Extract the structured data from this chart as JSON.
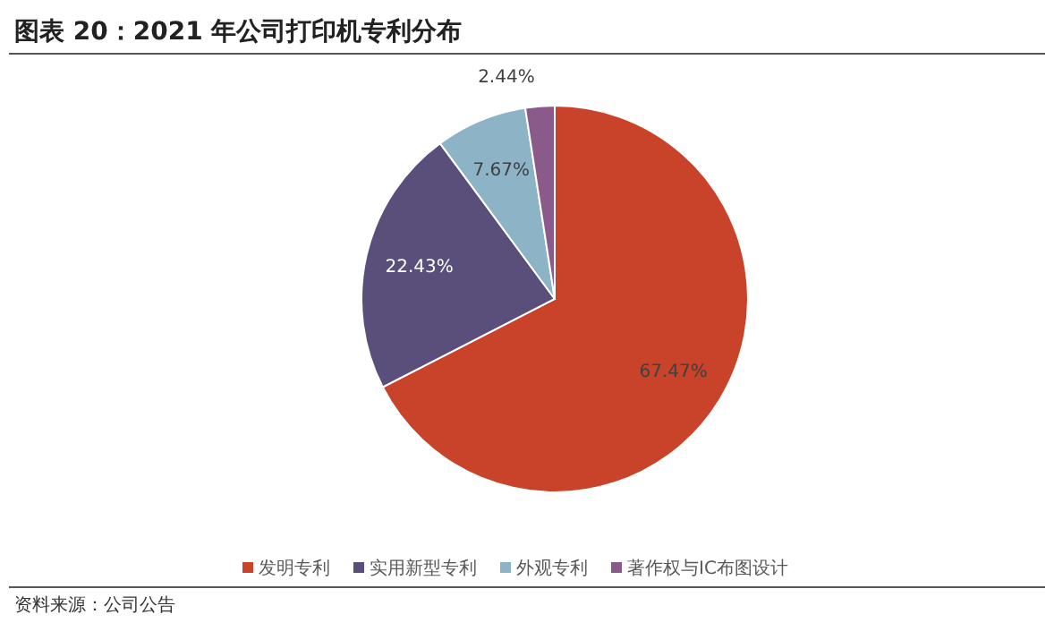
{
  "chart_data": {
    "type": "pie",
    "title": "图表 20：2021 年公司打印机专利分布",
    "categories": [
      "发明专利",
      "实用新型专利",
      "外观专利",
      "著作权与IC布图设计"
    ],
    "values": [
      67.47,
      22.43,
      7.67,
      2.44
    ],
    "colors": [
      "#c8432a",
      "#5a4f7a",
      "#8db3c7",
      "#8a5a8a"
    ],
    "value_labels": [
      "67.47%",
      "22.43%",
      "7.67%",
      "2.44%"
    ],
    "legend": "bottom",
    "annotations": [
      "资料来源：公司公告"
    ]
  }
}
